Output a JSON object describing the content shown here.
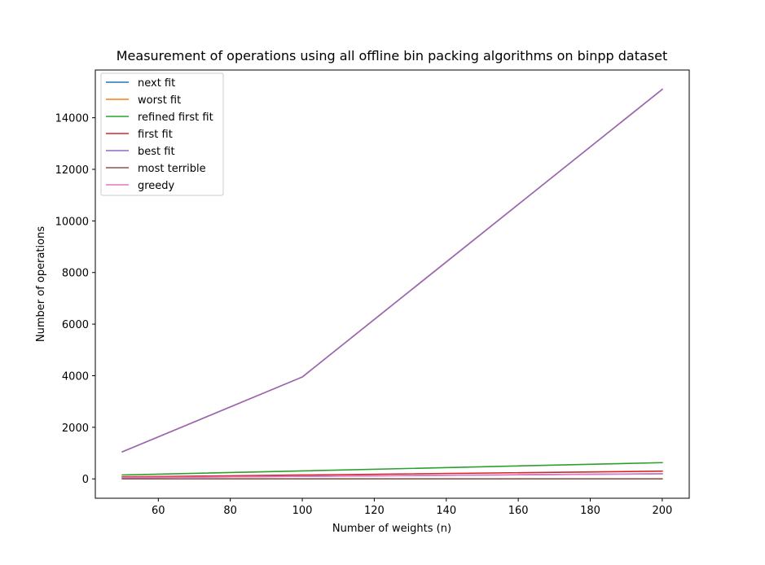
{
  "chart_data": {
    "type": "line",
    "title": "Measurement of operations using all offline bin packing algorithms on binpp dataset",
    "xlabel": "Number of weights (n)",
    "ylabel": "Number of operations",
    "x": [
      50,
      100,
      200
    ],
    "xlim": [
      42.5,
      207.5
    ],
    "ylim": [
      -750,
      15850
    ],
    "xticks": [
      60,
      80,
      100,
      120,
      140,
      160,
      180,
      200
    ],
    "yticks": [
      0,
      2000,
      4000,
      6000,
      8000,
      10000,
      12000,
      14000
    ],
    "grid": false,
    "legend_position": "upper left",
    "series": [
      {
        "name": "next fit",
        "color": "#1f77b4",
        "values": [
          49,
          99,
          199
        ]
      },
      {
        "name": "worst fit",
        "color": "#ff7f0e",
        "values": [
          1050,
          3950,
          15100
        ]
      },
      {
        "name": "refined first fit",
        "color": "#2ca02c",
        "values": [
          150,
          310,
          630
        ]
      },
      {
        "name": "first fit",
        "color": "#d62728",
        "values": [
          75,
          150,
          300
        ]
      },
      {
        "name": "best fit",
        "color": "#9467bd",
        "values": [
          1050,
          3950,
          15100
        ]
      },
      {
        "name": "most terrible",
        "color": "#8c564b",
        "values": [
          0,
          0,
          0
        ]
      },
      {
        "name": "greedy",
        "color": "#e377c2",
        "values": [
          50,
          100,
          200
        ]
      }
    ]
  }
}
